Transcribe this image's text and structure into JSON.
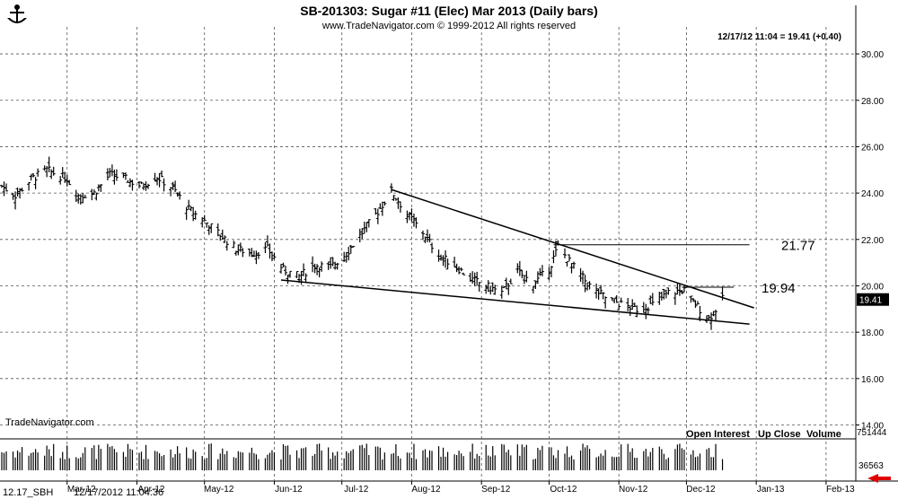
{
  "header": {
    "title": "SB-201303:  Sugar #11 (Elec) Mar 2013  (Daily bars)",
    "copyright": "www.TradeNavigator.com © 1999-2012 All rights reserved",
    "quote": "12/17/12 11:04 = 19.41 (+0.40)",
    "watermark": "TradeNavigator.com"
  },
  "legend": {
    "open_interest": "Open Interest",
    "up_close": "Up Close",
    "volume": "Volume"
  },
  "footer": {
    "symbol": "12.17_SBH",
    "timestamp": "12/17/2012 11:04:36"
  },
  "colors": {
    "bars": "#000000",
    "grid": "#555555",
    "last_price_bg": "#000000",
    "scroll_arrow": "#e00000"
  },
  "chart_data": {
    "type": "bar",
    "subtype": "ohlc-daily",
    "x_ticks": [
      "Mar-12",
      "Apr-12",
      "May-12",
      "Jun-12",
      "Jul-12",
      "Aug-12",
      "Sep-12",
      "Oct-12",
      "Nov-12",
      "Dec-12",
      "Jan-13",
      "Feb-13"
    ],
    "y_ticks": [
      "14.00",
      "16.00",
      "18.00",
      "20.00",
      "22.00",
      "24.00",
      "26.00",
      "28.00",
      "30.00"
    ],
    "ylim": [
      13.4,
      30.7
    ],
    "last_price": "19.41",
    "volume_labels": {
      "high": "751444",
      "low": "36563"
    },
    "annotations": [
      {
        "label": "21.77",
        "value": 21.77
      },
      {
        "label": "19.94",
        "value": 19.94
      }
    ],
    "close_path": [
      [
        "2012-02-01",
        24.3
      ],
      [
        "2012-02-07",
        23.9
      ],
      [
        "2012-02-14",
        24.6
      ],
      [
        "2012-02-21",
        25.0
      ],
      [
        "2012-03-01",
        24.6
      ],
      [
        "2012-03-06",
        23.9
      ],
      [
        "2012-03-13",
        24.0
      ],
      [
        "2012-03-20",
        24.8
      ],
      [
        "2012-03-27",
        24.6
      ],
      [
        "2012-04-03",
        24.3
      ],
      [
        "2012-04-10",
        24.7
      ],
      [
        "2012-04-17",
        24.2
      ],
      [
        "2012-04-24",
        23.3
      ],
      [
        "2012-05-01",
        22.8
      ],
      [
        "2012-05-08",
        22.2
      ],
      [
        "2012-05-15",
        21.6
      ],
      [
        "2012-05-22",
        21.4
      ],
      [
        "2012-05-29",
        21.6
      ],
      [
        "2012-06-05",
        20.7
      ],
      [
        "2012-06-12",
        20.4
      ],
      [
        "2012-06-19",
        20.9
      ],
      [
        "2012-06-26",
        20.8
      ],
      [
        "2012-07-03",
        21.4
      ],
      [
        "2012-07-10",
        22.3
      ],
      [
        "2012-07-17",
        23.2
      ],
      [
        "2012-07-23",
        24.1
      ],
      [
        "2012-07-30",
        23.1
      ],
      [
        "2012-08-06",
        22.3
      ],
      [
        "2012-08-13",
        21.3
      ],
      [
        "2012-08-20",
        20.9
      ],
      [
        "2012-08-27",
        20.3
      ],
      [
        "2012-09-03",
        20.0
      ],
      [
        "2012-09-10",
        19.7
      ],
      [
        "2012-09-17",
        20.6
      ],
      [
        "2012-09-24",
        20.1
      ],
      [
        "2012-10-01",
        20.7
      ],
      [
        "2012-10-05",
        21.7
      ],
      [
        "2012-10-12",
        20.8
      ],
      [
        "2012-10-19",
        20.0
      ],
      [
        "2012-10-26",
        19.5
      ],
      [
        "2012-11-02",
        19.2
      ],
      [
        "2012-11-09",
        19.0
      ],
      [
        "2012-11-16",
        19.2
      ],
      [
        "2012-11-23",
        19.7
      ],
      [
        "2012-11-30",
        19.8
      ],
      [
        "2012-12-04",
        19.3
      ],
      [
        "2012-12-11",
        18.6
      ],
      [
        "2012-12-14",
        19.0
      ],
      [
        "2012-12-17",
        19.41
      ]
    ],
    "trendlines": [
      {
        "name": "upper",
        "from": [
          "2012-07-23",
          24.15
        ],
        "to": [
          "2012-12-31",
          19.05
        ]
      },
      {
        "name": "lower",
        "from": [
          "2012-06-04",
          20.25
        ],
        "to": [
          "2012-12-29",
          18.35
        ]
      }
    ],
    "horizontal_lines": [
      {
        "from": "2012-10-03",
        "to": "2012-12-29",
        "value": 21.77
      },
      {
        "from": "2012-11-29",
        "to": "2012-12-22",
        "value": 19.94
      }
    ]
  }
}
